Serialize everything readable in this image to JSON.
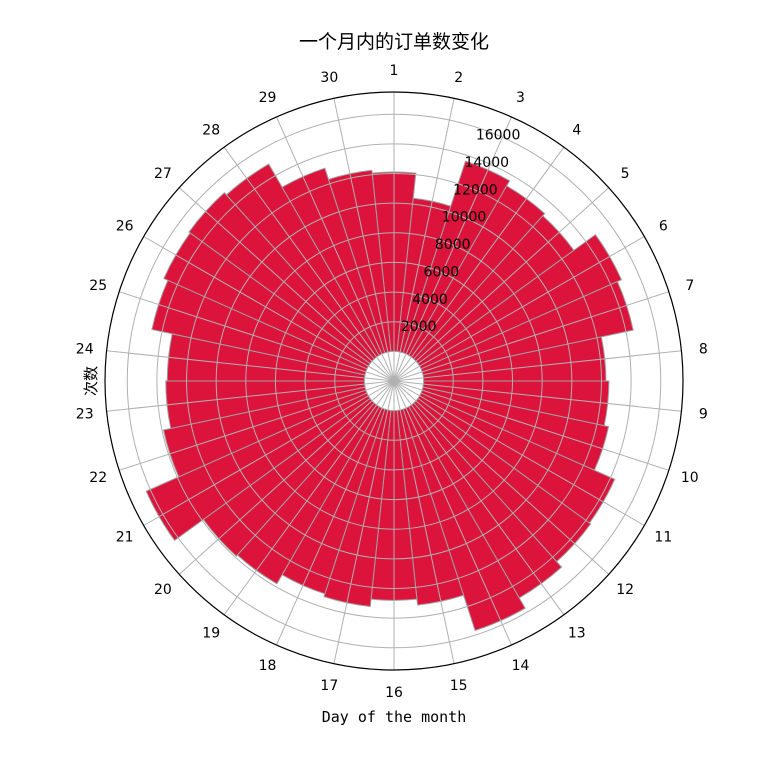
{
  "chart_data": {
    "type": "bar",
    "projection": "polar",
    "title": "一个月内的订单数变化",
    "xlabel": "Day of the month",
    "ylabel": "次数",
    "categories": [
      "1",
      "2",
      "3",
      "4",
      "5",
      "6",
      "7",
      "8",
      "9",
      "10",
      "11",
      "12",
      "13",
      "14",
      "15",
      "16",
      "17",
      "18",
      "19",
      "20",
      "21",
      "22",
      "23",
      "24",
      "25",
      "26",
      "27",
      "28",
      "29",
      "30"
    ],
    "values": [
      12100,
      10400,
      13600,
      13200,
      13000,
      14800,
      14500,
      12300,
      12500,
      12800,
      14300,
      14400,
      14900,
      15700,
      13200,
      12800,
      13300,
      13100,
      13800,
      13900,
      16300,
      13900,
      13400,
      13300,
      14700,
      15000,
      15100,
      14900,
      13100,
      12300
    ],
    "rticks": [
      2000,
      4000,
      6000,
      8000,
      10000,
      12000,
      14000,
      16000
    ],
    "rlim": [
      -2000,
      17500
    ],
    "direction": "clockwise",
    "zero_location": "top",
    "grid": true,
    "bar_color": "#dc143c",
    "bar_edge_color": "#a0a0a0",
    "grid_color": "#b0b0b0"
  }
}
